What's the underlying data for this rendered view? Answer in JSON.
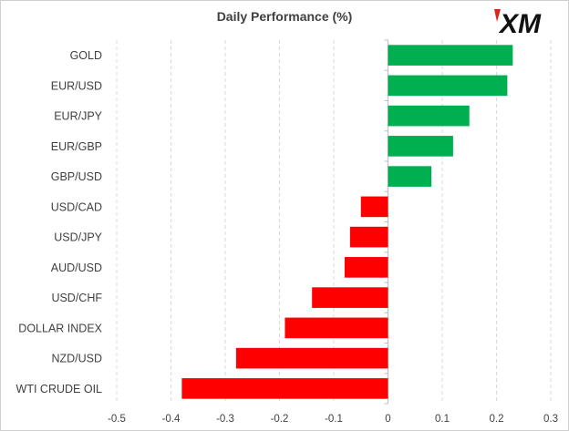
{
  "logo": {
    "text": "XM",
    "accent_color": "#e2231a"
  },
  "chart_data": {
    "type": "bar",
    "orientation": "horizontal",
    "title": "Daily Performance (%)",
    "xlabel": "",
    "ylabel": "",
    "categories": [
      "GOLD",
      "EUR/USD",
      "EUR/JPY",
      "EUR/GBP",
      "GBP/USD",
      "USD/CAD",
      "USD/JPY",
      "AUD/USD",
      "USD/CHF",
      "DOLLAR INDEX",
      "NZD/USD",
      "WTI CRUDE OIL"
    ],
    "values": [
      0.23,
      0.22,
      0.15,
      0.12,
      0.08,
      -0.05,
      -0.07,
      -0.08,
      -0.14,
      -0.19,
      -0.28,
      -0.38
    ],
    "xlim": [
      -0.5,
      0.3
    ],
    "ticks": [
      -0.5,
      -0.4,
      -0.3,
      -0.2,
      -0.1,
      0,
      0.1,
      0.2,
      0.3
    ],
    "tick_labels": [
      "-0.5",
      "-0.4",
      "-0.3",
      "-0.2",
      "-0.1",
      "0",
      "0.1",
      "0.2",
      "0.3"
    ],
    "grid": true,
    "positive_color": "#00b050",
    "negative_color": "#ff0000",
    "grid_color": "#d9d9d9",
    "axis_color": "#bfbfbf"
  }
}
